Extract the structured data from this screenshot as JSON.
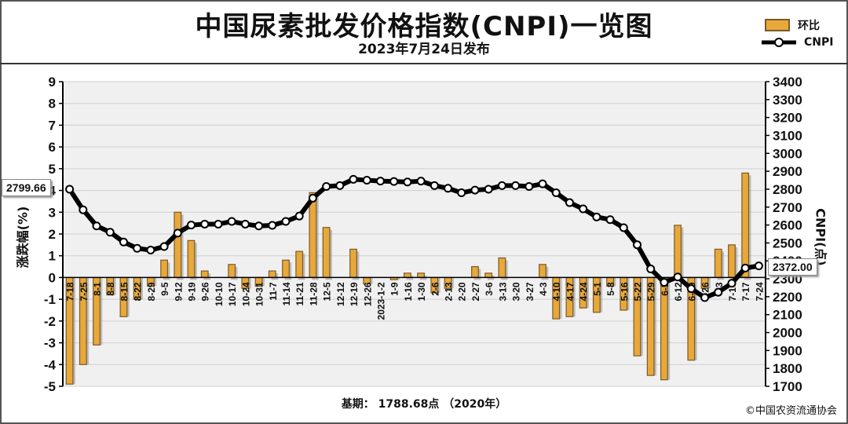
{
  "header": {
    "title": "中国尿素批发价格指数(CNPI)一览图",
    "subtitle": "2023年7月24日发布"
  },
  "legend": {
    "bar_label": "环比",
    "line_label": "CNPI"
  },
  "footer": {
    "base_text": "基期：   1788.68点   （2020年）",
    "copyright": "©中国农资流通协会"
  },
  "callouts": {
    "first_value": "2799.66",
    "last_value": "2372.00"
  },
  "colors": {
    "bar_fill": "#e8a83a",
    "bar_edge": "#7a5a2a",
    "line": "#000000",
    "marker_fill": "#ffffff",
    "grid": "#cfcfcf",
    "plot_bg": "#f0f0f0"
  },
  "chart_data": {
    "type": "bar",
    "xlabel": "",
    "categories": [
      "7-18",
      "7-25",
      "8-1",
      "8-8",
      "8-15",
      "8-22",
      "8-29",
      "9-5",
      "9-12",
      "9-19",
      "9-26",
      "10-10",
      "10-17",
      "10-24",
      "10-31",
      "11-7",
      "11-14",
      "11-21",
      "11-28",
      "12-5",
      "12-12",
      "12-19",
      "12-26",
      "2023-1-2",
      "1-9",
      "1-16",
      "1-30",
      "2-6",
      "2-13",
      "2-20",
      "2-27",
      "3-6",
      "3-13",
      "3-20",
      "3-27",
      "4-3",
      "4-10",
      "4-17",
      "4-24",
      "5-1",
      "5-8",
      "5-16",
      "5-22",
      "5-29",
      "6-5",
      "6-12",
      "6-19",
      "6-26",
      "7-3",
      "7-10",
      "7-17",
      "7-24"
    ],
    "series": [
      {
        "name": "环比",
        "axis": "left",
        "values": [
          -4.9,
          -4.0,
          -3.1,
          -0.8,
          -1.8,
          -1.0,
          -0.4,
          0.8,
          3.0,
          1.7,
          0.3,
          0.0,
          0.6,
          -0.5,
          -0.4,
          0.3,
          0.8,
          1.2,
          3.9,
          2.3,
          0.0,
          1.3,
          -0.3,
          0.0,
          -0.1,
          0.2,
          0.2,
          -0.7,
          -0.5,
          0.0,
          0.5,
          0.2,
          0.9,
          0.0,
          0.0,
          0.6,
          -1.9,
          -1.8,
          -1.4,
          -1.6,
          -0.4,
          -1.5,
          -3.6,
          -4.5,
          -4.7,
          2.4,
          -3.8,
          -0.5,
          1.3,
          1.5,
          4.8,
          0.0
        ]
      },
      {
        "name": "CNPI",
        "axis": "right",
        "values": [
          2799.66,
          2685,
          2595,
          2560,
          2505,
          2470,
          2460,
          2480,
          2555,
          2600,
          2605,
          2605,
          2620,
          2605,
          2595,
          2598,
          2620,
          2650,
          2750,
          2815,
          2820,
          2855,
          2850,
          2845,
          2843,
          2840,
          2845,
          2820,
          2805,
          2780,
          2795,
          2800,
          2820,
          2820,
          2815,
          2830,
          2780,
          2725,
          2690,
          2645,
          2630,
          2585,
          2490,
          2355,
          2280,
          2310,
          2245,
          2195,
          2225,
          2275,
          2360,
          2372.0
        ]
      }
    ],
    "y_left": {
      "label": "涨跌幅(%)",
      "min": -5,
      "max": 9,
      "ticks": [
        -5,
        -4,
        -3,
        -2,
        -1,
        0,
        1,
        2,
        3,
        4,
        5,
        6,
        7,
        8,
        9
      ]
    },
    "y_right": {
      "label": "CNPI(点)",
      "min": 1700,
      "max": 3400,
      "ticks": [
        1700,
        1800,
        1900,
        2000,
        2100,
        2200,
        2300,
        2400,
        2500,
        2600,
        2700,
        2800,
        2900,
        3000,
        3100,
        3200,
        3300,
        3400
      ]
    },
    "grid": true,
    "legend_position": "top-right"
  }
}
